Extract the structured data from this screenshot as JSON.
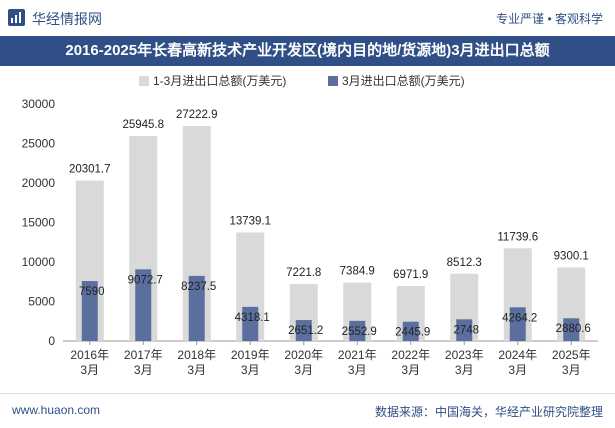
{
  "header": {
    "site_name": "华经情报网",
    "slogan": "专业严谨 • 客观科学",
    "title": "2016-2025年长春高新技术产业开发区(境内目的地/货源地)3月进出口总额"
  },
  "footer": {
    "website": "www.huaon.com",
    "source": "数据来源：中国海关，华经产业研究院整理"
  },
  "colors": {
    "brand": "#2f4f86",
    "series1": "#d9d9d9",
    "series2": "#5b6f9e"
  },
  "chart_data": {
    "type": "bar",
    "title": "",
    "xlabel": "",
    "ylabel": "",
    "ylim": [
      0,
      30000
    ],
    "yticks": [
      "0",
      "5000",
      "10000",
      "15000",
      "20000",
      "25000",
      "30000"
    ],
    "legend_position": "top-center",
    "categories": [
      "2016年\n3月",
      "2017年\n3月",
      "2018年\n3月",
      "2019年\n3月",
      "2020年\n3月",
      "2021年\n3月",
      "2022年\n3月",
      "2023年\n3月",
      "2024年\n3月",
      "2025年\n3月"
    ],
    "series": [
      {
        "name": "1-3月进出口总额(万美元)",
        "values": [
          20301.7,
          25945.8,
          27222.9,
          13739.1,
          7221.8,
          7384.9,
          6971.9,
          8512.3,
          11739.6,
          9300.1
        ],
        "labels": [
          "20301.7",
          "25945.8",
          "27222.9",
          "13739.1",
          "7221.8",
          "7384.9",
          "6971.9",
          "8512.3",
          "11739.6",
          "9300.1"
        ]
      },
      {
        "name": "3月进出口总额(万美元)",
        "values": [
          7590,
          9072.7,
          8237.5,
          4318.1,
          2651.2,
          2552.9,
          2445.9,
          2748,
          4264.2,
          2880.6
        ],
        "labels": [
          "7590",
          "9072.7",
          "8237.5",
          "4318.1",
          "2651.2",
          "2552.9",
          "2445.9",
          "2748",
          "4264.2",
          "2880.6"
        ]
      }
    ]
  }
}
